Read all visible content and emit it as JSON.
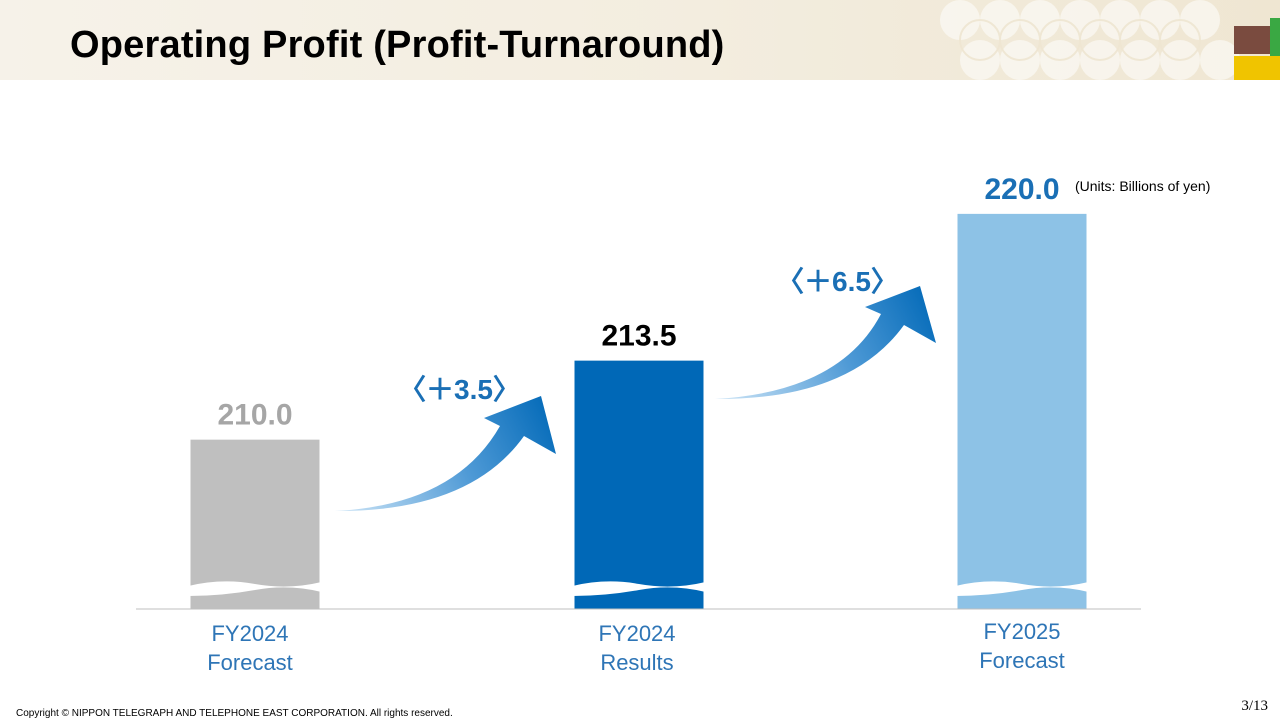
{
  "header": {
    "title": "Operating Profit (Profit-Turnaround)"
  },
  "chart_data": {
    "type": "bar",
    "units_note": "(Units: Billions of yen)",
    "categories": [
      {
        "line1": "FY2024",
        "line2": "Forecast"
      },
      {
        "line1": "FY2024",
        "line2": "Results"
      },
      {
        "line1": "FY2025",
        "line2": "Forecast"
      }
    ],
    "values": [
      210.0,
      213.5,
      220.0
    ],
    "value_labels": [
      "210.0",
      "213.5",
      "220.0"
    ],
    "bar_colors": [
      "#bfbfbf",
      "#0068b7",
      "#8dc2e6"
    ],
    "value_label_colors": [
      "#a6a6a6",
      "#000000",
      "#1a6fb5"
    ],
    "axis_break": true,
    "changes": [
      {
        "label": "〈＋3.5〉",
        "from": "FY2024 Forecast",
        "to": "FY2024 Results"
      },
      {
        "label": "〈＋6.5〉",
        "from": "FY2024 Results",
        "to": "FY2025 Forecast"
      }
    ],
    "arrow_color": "#0068b7",
    "category_label_color": "#2e75b6",
    "ylim": [
      202.5,
      221.5
    ],
    "grid": false,
    "legend": "none"
  },
  "colors": {
    "accent_brown": "#7a4b3f",
    "accent_green": "#3aa843",
    "accent_yellow": "#f0c400"
  },
  "footer": {
    "copyright": "Copyright © NIPPON TELEGRAPH AND TELEPHONE EAST CORPORATION. All rights reserved.",
    "page": "3/13"
  }
}
